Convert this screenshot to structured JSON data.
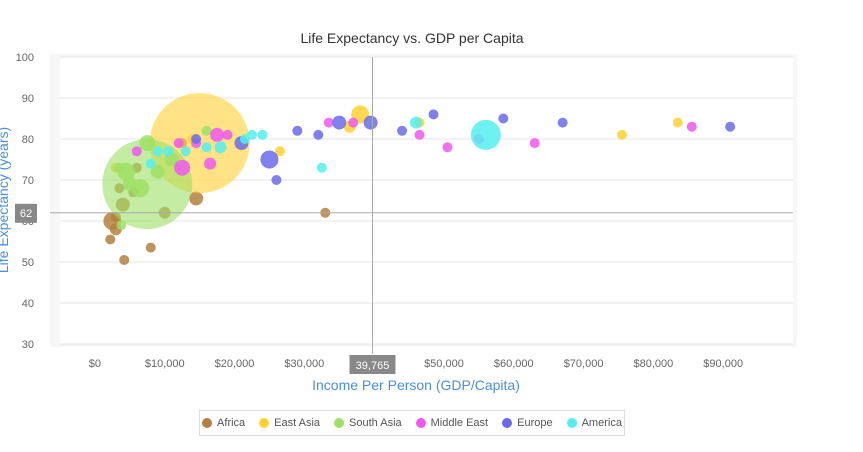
{
  "chart_data": {
    "type": "scatter",
    "title": "Life Expectancy vs. GDP per Capita",
    "xlabel": "Income Per Person (GDP/Capita)",
    "ylabel": "Life Expectancy (years)",
    "xlim": [
      -5000,
      100000
    ],
    "ylim": [
      30,
      100
    ],
    "x_ticks": [
      0,
      10000,
      20000,
      30000,
      40000,
      50000,
      60000,
      70000,
      80000,
      90000
    ],
    "x_tick_labels": [
      "$0",
      "$10,000",
      "$20,000",
      "$30,000",
      "$40,000",
      "$50,000",
      "$60,000",
      "$70,000",
      "$80,000",
      "$90,000"
    ],
    "y_ticks": [
      30,
      40,
      50,
      60,
      70,
      80,
      90,
      100
    ],
    "y_tick_labels": [
      "30",
      "40",
      "50",
      "60",
      "70",
      "80",
      "90",
      "100"
    ],
    "grid": true,
    "legend_position": "bottom-center",
    "crosshair": {
      "x": 39765,
      "y": 62,
      "x_label": "39,765",
      "y_label": "62"
    },
    "series": [
      {
        "name": "Africa",
        "color": "#b5803f",
        "points": [
          [
            2500,
            60,
            9
          ],
          [
            3000,
            58,
            6
          ],
          [
            2200,
            55.5,
            5
          ],
          [
            4200,
            50.5,
            5
          ],
          [
            8000,
            53.5,
            5
          ],
          [
            10000,
            62,
            6
          ],
          [
            14500,
            65.5,
            7
          ],
          [
            33000,
            62,
            5
          ],
          [
            4000,
            64,
            7
          ],
          [
            3500,
            68,
            5
          ],
          [
            5500,
            67,
            5
          ],
          [
            3000,
            61,
            5
          ],
          [
            6000,
            73,
            5
          ],
          [
            12500,
            79,
            5
          ]
        ]
      },
      {
        "name": "East Asia",
        "color": "#ffd133",
        "points": [
          [
            15000,
            79,
            50
          ],
          [
            38000,
            86,
            9
          ],
          [
            36500,
            83,
            6
          ],
          [
            26500,
            77,
            5
          ],
          [
            46500,
            84,
            5
          ],
          [
            75500,
            81,
            5
          ],
          [
            83500,
            84,
            5
          ],
          [
            3000,
            73,
            5
          ],
          [
            14000,
            80,
            5
          ]
        ]
      },
      {
        "name": "South Asia",
        "color": "#9ee065",
        "points": [
          [
            7500,
            69,
            45
          ],
          [
            7500,
            79,
            8
          ],
          [
            9000,
            72,
            7
          ],
          [
            6500,
            68,
            9
          ],
          [
            4500,
            72,
            9
          ],
          [
            5000,
            69,
            7
          ],
          [
            3500,
            73,
            5
          ],
          [
            11000,
            75,
            7
          ],
          [
            16000,
            82,
            5
          ],
          [
            3800,
            59,
            5
          ]
        ]
      },
      {
        "name": "Middle East",
        "color": "#ee58ee",
        "points": [
          [
            12500,
            73,
            8
          ],
          [
            17500,
            81,
            7
          ],
          [
            19000,
            81,
            5
          ],
          [
            16500,
            74,
            6
          ],
          [
            14500,
            79,
            5
          ],
          [
            6000,
            77,
            5
          ],
          [
            12000,
            79,
            5
          ],
          [
            33500,
            84,
            5
          ],
          [
            46500,
            81,
            5
          ],
          [
            50500,
            78,
            5
          ],
          [
            63000,
            79,
            5
          ],
          [
            85500,
            83,
            5
          ],
          [
            55000,
            80,
            5
          ],
          [
            37000,
            84,
            5
          ]
        ]
      },
      {
        "name": "Europe",
        "color": "#6b6bea",
        "points": [
          [
            25000,
            75,
            9
          ],
          [
            21000,
            79,
            7
          ],
          [
            26000,
            70,
            5
          ],
          [
            29000,
            82,
            5
          ],
          [
            32000,
            81,
            5
          ],
          [
            35000,
            84,
            7
          ],
          [
            39500,
            84,
            7
          ],
          [
            44000,
            82,
            5
          ],
          [
            48500,
            86,
            5
          ],
          [
            58500,
            85,
            5
          ],
          [
            67000,
            84,
            5
          ],
          [
            91000,
            83,
            5
          ],
          [
            14500,
            80,
            5
          ]
        ]
      },
      {
        "name": "America",
        "color": "#55eeee",
        "points": [
          [
            56000,
            81,
            15
          ],
          [
            46000,
            84,
            6
          ],
          [
            32500,
            73,
            5
          ],
          [
            22500,
            81,
            5
          ],
          [
            24000,
            81,
            5
          ],
          [
            18000,
            78,
            6
          ],
          [
            9000,
            77,
            5
          ],
          [
            10500,
            77,
            5
          ],
          [
            13000,
            77,
            5
          ],
          [
            8000,
            74,
            5
          ],
          [
            21500,
            80,
            5
          ],
          [
            16000,
            78,
            5
          ]
        ]
      }
    ]
  }
}
